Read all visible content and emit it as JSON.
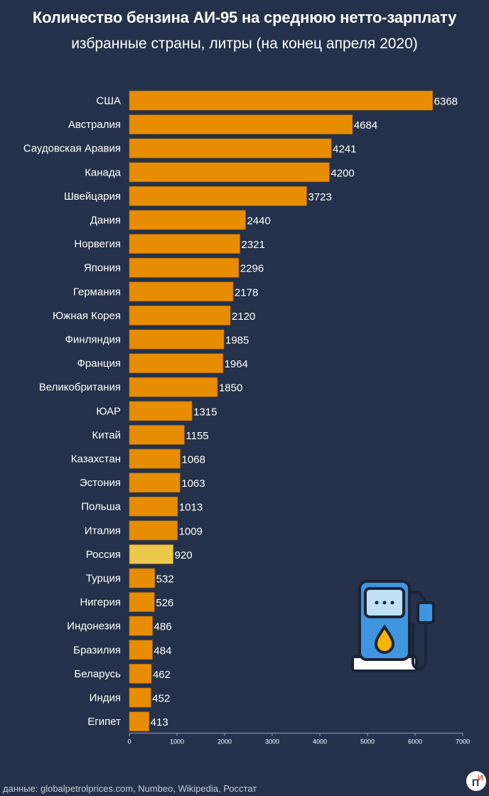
{
  "title": "Количество бензина АИ-95 на среднюю нетто-зарплату",
  "subtitle": "избранные страны, литры (на конец апреля 2020)",
  "source": "данные: globalpetrolprices.com, Numbeo, Wikipedia, Росстат",
  "logo": {
    "text": "ПИ",
    "icon": "logo-icon"
  },
  "colors": {
    "background": "#25314a",
    "bar": "#e88d00",
    "highlight": "#ecc94b",
    "axis": "#9aa2b4"
  },
  "decoration": {
    "icon": "fuel-pump-icon"
  },
  "chart_data": {
    "type": "bar",
    "orientation": "horizontal",
    "title": "Количество бензина АИ-95 на среднюю нетто-зарплату",
    "subtitle": "избранные страны, литры (на конец апреля 2020)",
    "categories": [
      "США",
      "Австралия",
      "Саудовская Аравия",
      "Канада",
      "Швейцария",
      "Дания",
      "Норвегия",
      "Япония",
      "Германия",
      "Южная Корея",
      "Финляндия",
      "Франция",
      "Великобритания",
      "ЮАР",
      "Китай",
      "Казахстан",
      "Эстония",
      "Польша",
      "Италия",
      "Россия",
      "Турция",
      "Нигерия",
      "Индонезия",
      "Бразилия",
      "Беларусь",
      "Индия",
      "Египет"
    ],
    "values": [
      6368,
      4684,
      4241,
      4200,
      3723,
      2440,
      2321,
      2296,
      2178,
      2120,
      1985,
      1964,
      1850,
      1315,
      1155,
      1068,
      1063,
      1013,
      1009,
      920,
      532,
      526,
      486,
      484,
      462,
      452,
      413
    ],
    "highlight": "Россия",
    "xlim": [
      0,
      7000
    ],
    "xticks": [
      0,
      1000,
      2000,
      3000,
      4000,
      5000,
      6000,
      7000
    ],
    "grid": false,
    "legend": "none"
  }
}
